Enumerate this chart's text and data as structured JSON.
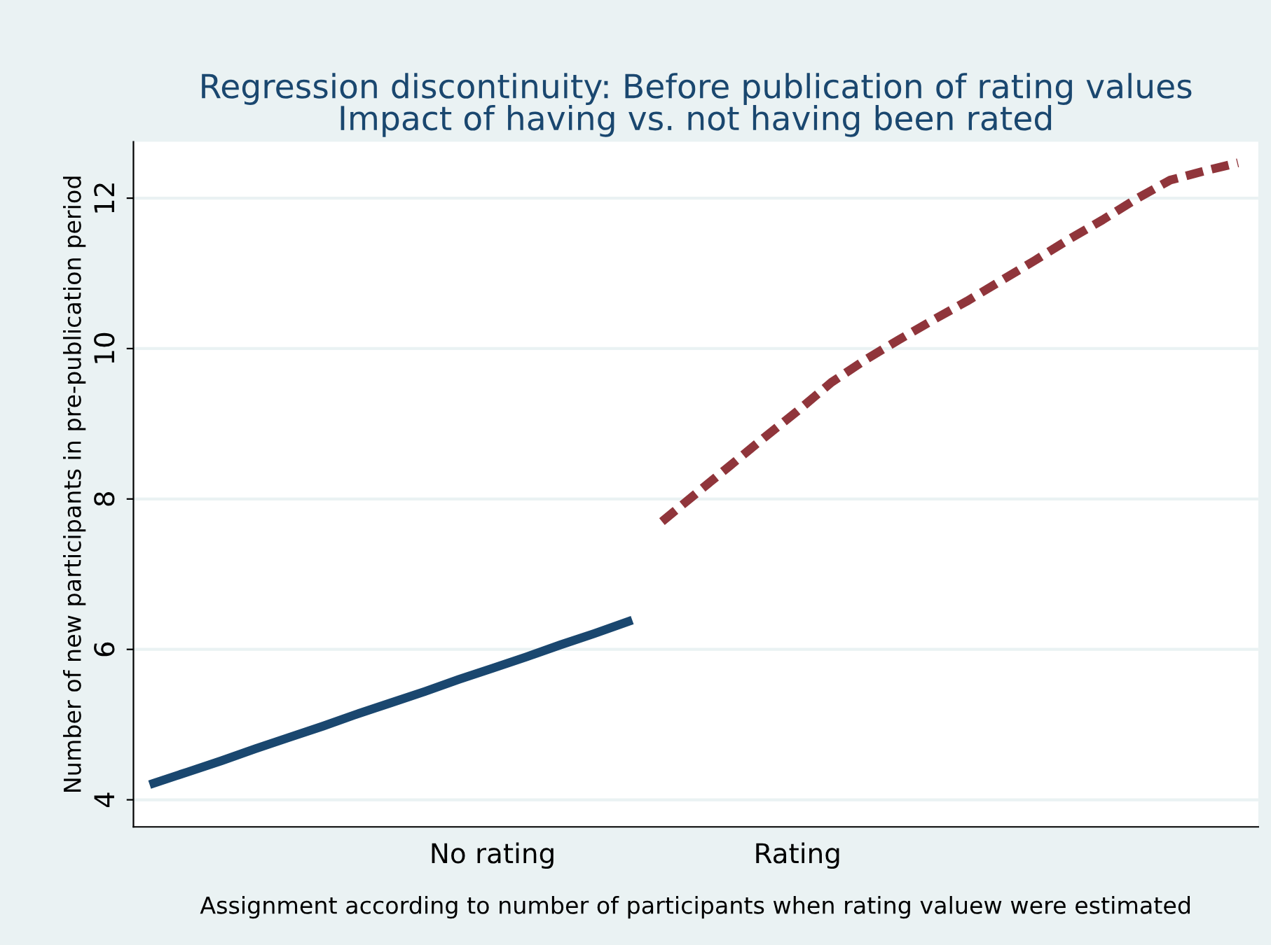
{
  "chart_data": {
    "type": "line",
    "title": "Regression discontinuity: Before publication of rating values\nImpact of having vs. not having been rated",
    "xlabel": "Assignment according to number of participants when rating valuew were estimated",
    "ylabel": "Number of new participants in pre-publication period",
    "categories": [
      null,
      null,
      null,
      null,
      null,
      null,
      null,
      null,
      null,
      null,
      "No rating",
      null,
      null,
      null,
      null,
      null,
      null,
      null,
      null,
      "Rating",
      null,
      null,
      null,
      null,
      null,
      null,
      null,
      null,
      null,
      null,
      null,
      null,
      null
    ],
    "series": [
      {
        "color": "#1a476f",
        "line_style": "solid",
        "values": [
          4.22,
          4.37,
          4.52,
          4.68,
          4.83,
          4.98,
          5.14,
          5.29,
          5.44,
          5.6,
          5.75,
          5.9,
          6.06,
          6.21,
          6.37,
          null,
          null,
          null,
          null,
          null,
          null,
          null,
          null,
          null,
          null,
          null,
          null,
          null,
          null,
          null,
          null,
          null,
          null
        ]
      },
      {
        "color": "#90353b",
        "line_style": "dashed",
        "values": [
          null,
          null,
          null,
          null,
          null,
          null,
          null,
          null,
          null,
          null,
          null,
          null,
          null,
          null,
          null,
          7.7,
          8.07,
          8.44,
          8.81,
          9.17,
          9.55,
          9.85,
          10.12,
          10.38,
          10.63,
          10.9,
          11.17,
          11.45,
          11.71,
          11.99,
          12.24,
          12.36,
          12.47
        ]
      }
    ],
    "ylim": [
      3.64,
      12.75
    ],
    "yticks": [
      4,
      6,
      8,
      10,
      12
    ],
    "grid": "y",
    "marker": "none"
  }
}
